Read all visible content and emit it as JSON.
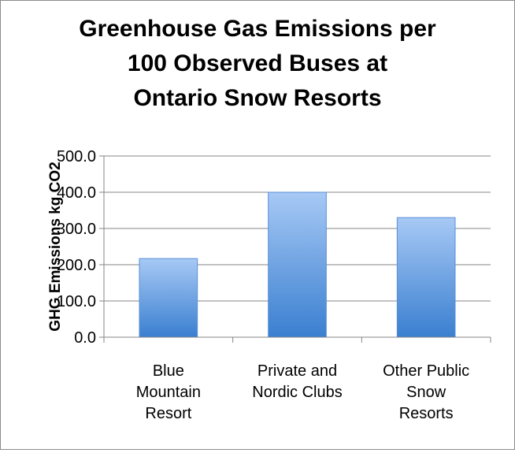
{
  "chart_data": {
    "type": "bar",
    "title": [
      "Greenhouse Gas Emissions per",
      "100 Observed Buses at",
      "Ontario Snow Resorts"
    ],
    "ylabel": "GHG Emissions kg CO2",
    "xlabel": "",
    "categories": [
      [
        "Blue",
        "Mountain",
        "Resort"
      ],
      [
        "Private and",
        "Nordic Clubs"
      ],
      [
        "Other Public",
        "Snow",
        "Resorts"
      ]
    ],
    "values": [
      217,
      400,
      330
    ],
    "ylim": [
      0,
      500
    ],
    "yticks": [
      "0.0",
      "100.0",
      "200.0",
      "300.0",
      "400.0",
      "500.0"
    ],
    "grid": true,
    "legend": "none",
    "colors": {
      "bar_top": "#a7c9f5",
      "bar_bottom": "#3a7fd0",
      "grid": "#868686",
      "axis": "#868686",
      "text": "#000000"
    }
  }
}
